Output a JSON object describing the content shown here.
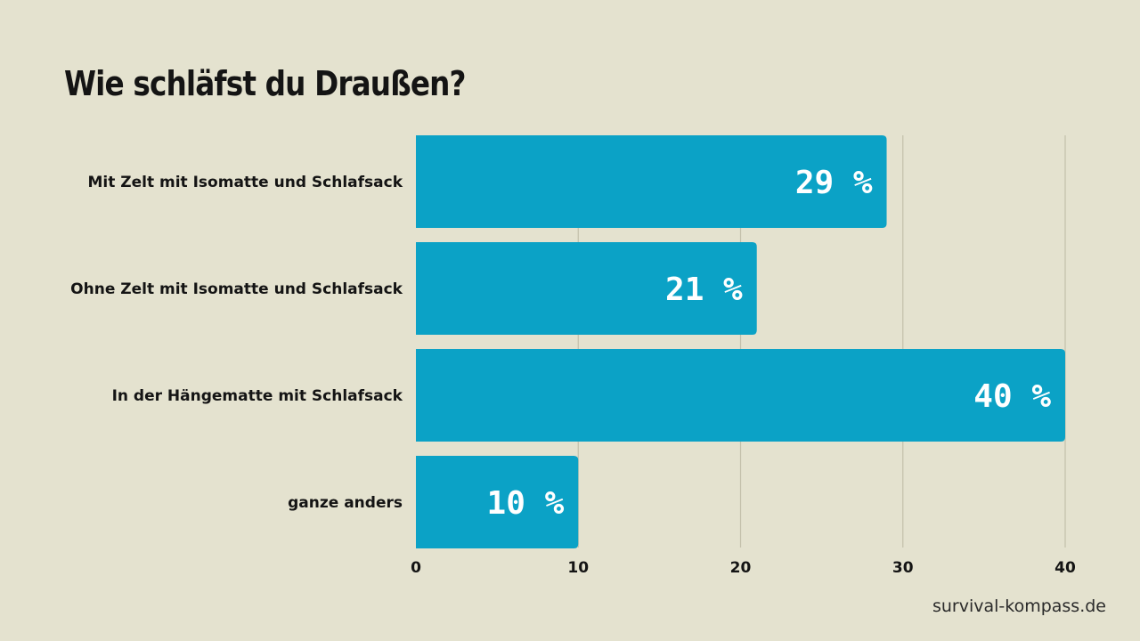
{
  "title": "Wie schläfst du Draußen?",
  "watermark": "survival-kompass.de",
  "colors": {
    "background": "#e4e2cf",
    "bar": "#0ba2c6",
    "grid": "#c3c0ab",
    "text": "#141414",
    "value_text": "#ffffff"
  },
  "chart_data": {
    "type": "bar",
    "orientation": "horizontal",
    "title": "Wie schläfst du Draußen?",
    "xlabel": "",
    "ylabel": "",
    "categories": [
      "Mit Zelt mit Isomatte und Schlafsack",
      "Ohne Zelt mit Isomatte und Schlafsack",
      "In der Hängematte mit Schlafsack",
      "ganze anders"
    ],
    "values": [
      29,
      21,
      40,
      10
    ],
    "data_labels": [
      "29 %",
      "21 %",
      "40 %",
      "10 %"
    ],
    "xlim": [
      0,
      40
    ],
    "x_ticks": [
      0,
      10,
      20,
      30,
      40
    ],
    "x_tick_labels": [
      "0",
      "10",
      "20",
      "30",
      "40"
    ],
    "grid": true,
    "legend": "none"
  }
}
